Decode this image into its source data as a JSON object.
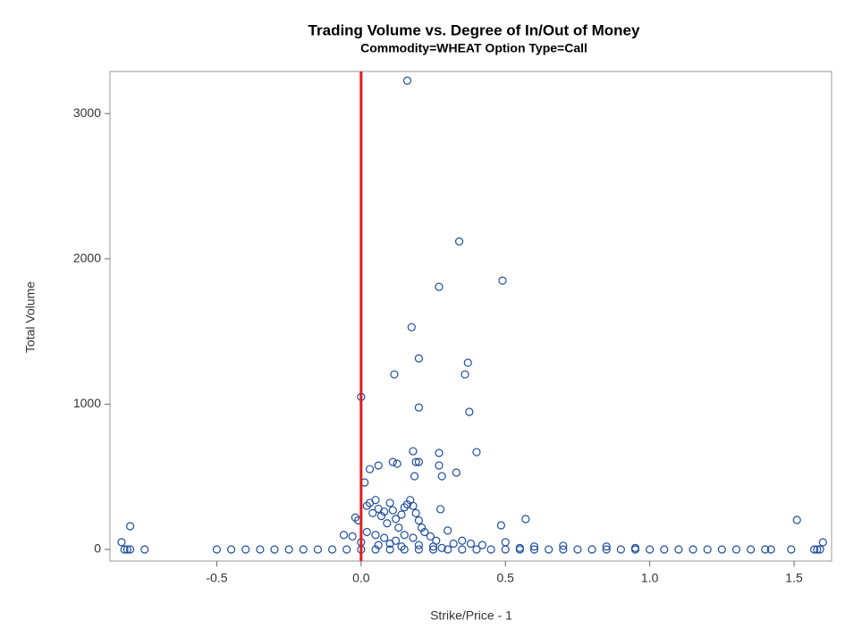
{
  "chart_data": {
    "type": "scatter",
    "title": "Trading Volume vs. Degree of In/Out of Money",
    "subtitle": "Commodity=WHEAT Option Type=Call",
    "x_label": "Strike/Price - 1",
    "y_label": "Total Volume",
    "color": "#1f4e9c",
    "refline": {
      "x": 0,
      "color": "#e41a1c"
    },
    "xlim": [
      -0.87,
      1.63
    ],
    "ylim": [
      -80,
      3290
    ],
    "xticks": [
      -0.5,
      {
        "value": 0,
        "label": "0.0"
      },
      0.5,
      {
        "value": 1,
        "label": "1.0"
      },
      1.5
    ],
    "yticks": [
      0,
      1000,
      2000,
      3000
    ],
    "x": [
      0.16,
      0.34,
      0.49,
      0.27,
      0.175,
      0.2,
      0.37,
      0.115,
      0.36,
      0.0,
      0.2,
      0.375,
      0.4,
      0.18,
      0.27,
      0.27,
      0.33,
      0.28,
      0.185,
      0.11,
      0.125,
      0.19,
      0.2,
      0.06,
      0.03,
      0.012,
      0.275,
      0.485,
      0.57,
      1.51,
      -0.8,
      -0.83,
      1.6,
      -0.02,
      -0.01,
      0.02,
      0.03,
      0.04,
      0.05,
      0.06,
      0.07,
      0.08,
      0.09,
      0.1,
      0.11,
      0.12,
      0.13,
      0.14,
      0.15,
      0.16,
      0.17,
      0.18,
      0.19,
      0.2,
      0.21,
      0.22,
      0.24,
      0.26,
      0.3,
      0.32,
      0.35,
      0.38,
      0.42,
      0.5,
      0.02,
      0.05,
      0.08,
      0.12,
      0.15,
      0.18,
      0.1,
      0.06,
      -0.03,
      -0.06,
      0.0,
      0.14,
      0.2,
      0.25,
      0.28,
      0.6,
      0.7,
      0.85,
      0.95,
      0.55,
      -0.82,
      -0.81,
      -0.8,
      -0.75,
      -0.5,
      -0.45,
      -0.4,
      -0.35,
      -0.3,
      -0.25,
      -0.2,
      -0.15,
      -0.1,
      -0.05,
      0,
      0.05,
      0.1,
      0.15,
      0.2,
      0.25,
      0.3,
      0.35,
      0.4,
      0.45,
      0.5,
      0.55,
      0.6,
      0.65,
      0.7,
      0.75,
      0.8,
      0.85,
      0.9,
      0.95,
      1,
      1.05,
      1.1,
      1.15,
      1.2,
      1.25,
      1.3,
      1.35,
      1.4,
      1.42,
      1.49,
      1.57,
      1.58,
      1.59
    ],
    "values": [
      3227,
      2120,
      1850,
      1807,
      1530,
      1315,
      1285,
      1205,
      1205,
      1050,
      977,
      947,
      670,
      676,
      664,
      578,
      529,
      504,
      504,
      602,
      590,
      602,
      602,
      578,
      553,
      461,
      277,
      166,
      209,
      203,
      160,
      50,
      49,
      220,
      200,
      300,
      320,
      250,
      340,
      280,
      230,
      260,
      180,
      320,
      270,
      210,
      150,
      240,
      290,
      310,
      340,
      300,
      250,
      200,
      150,
      120,
      90,
      60,
      130,
      40,
      60,
      40,
      30,
      50,
      120,
      100,
      80,
      60,
      100,
      80,
      40,
      30,
      90,
      100,
      50,
      20,
      30,
      20,
      10,
      20,
      25,
      20,
      10,
      10,
      0,
      0,
      0,
      0,
      0,
      0,
      0,
      0,
      0,
      0,
      0,
      0,
      0,
      0,
      0,
      0,
      0,
      0,
      0,
      0,
      0,
      0,
      0,
      0,
      0,
      0,
      0,
      0,
      0,
      0,
      0,
      0,
      0,
      0,
      0,
      0,
      0,
      0,
      0,
      0,
      0,
      0,
      0,
      0,
      0,
      0,
      0,
      0
    ]
  }
}
